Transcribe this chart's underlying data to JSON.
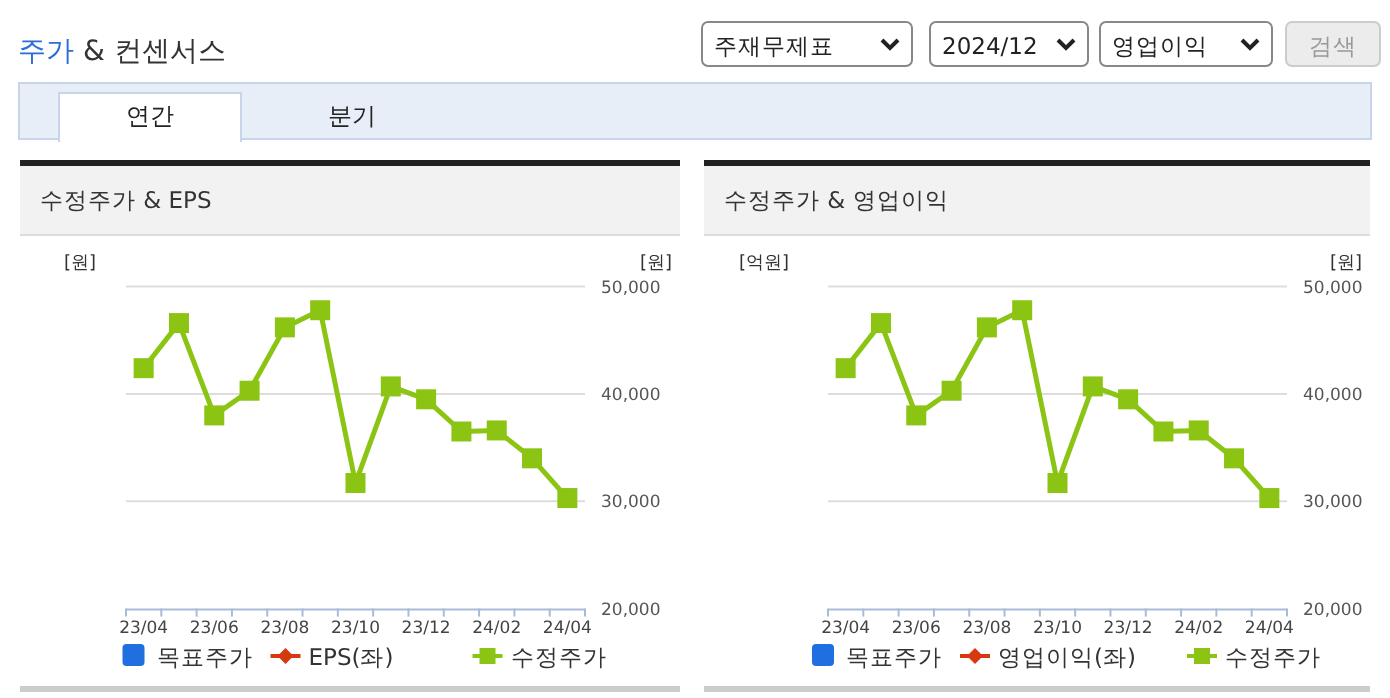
{
  "chart_data": [
    {
      "type": "other",
      "title": "주가 & 컨센서스",
      "annotations": [
        "주재무제표",
        "2024/12",
        "영업이익",
        "검색",
        "연간",
        "분기"
      ]
    },
    {
      "type": "line",
      "title": "수정주가 & EPS",
      "ylabel": "[원]",
      "y2label": "[원]",
      "categories": [
        "23/04",
        null,
        "23/06",
        null,
        "23/08",
        null,
        "23/10",
        null,
        "23/12",
        null,
        "24/02",
        null,
        "24/04"
      ],
      "series": [
        {
          "name": "목표주가",
          "type": "bar",
          "color": "#1f6fe0",
          "values": [
            null,
            null,
            null,
            null,
            null,
            null,
            null,
            null,
            null,
            null,
            null,
            null,
            null
          ]
        },
        {
          "name": "EPS(좌)",
          "color": "#d6380f",
          "marker": "diamond",
          "values": [
            null,
            null,
            null,
            null,
            null,
            null,
            null,
            null,
            null,
            null,
            null,
            null,
            null
          ]
        },
        {
          "name": "수정주가",
          "color": "#8cc414",
          "marker": "square",
          "axis": "y2",
          "values": [
            42400,
            46600,
            38000,
            40300,
            46200,
            47800,
            31700,
            40700,
            39500,
            36500,
            36600,
            34000,
            30300
          ]
        }
      ],
      "y2lim": [
        20000,
        50000
      ],
      "y2ticks": [
        {
          "value": 20000,
          "label": "20,000"
        },
        {
          "value": 30000,
          "label": "30,000"
        },
        {
          "value": 40000,
          "label": "40,000"
        },
        {
          "value": 50000,
          "label": "50,000"
        }
      ],
      "grid": "y",
      "legend": "bottom"
    },
    {
      "type": "line",
      "title": "수정주가 & 영업이익",
      "ylabel": "[억원]",
      "y2label": "[원]",
      "categories": [
        "23/04",
        null,
        "23/06",
        null,
        "23/08",
        null,
        "23/10",
        null,
        "23/12",
        null,
        "24/02",
        null,
        "24/04"
      ],
      "series": [
        {
          "name": "목표주가",
          "type": "bar",
          "color": "#1f6fe0",
          "values": [
            null,
            null,
            null,
            null,
            null,
            null,
            null,
            null,
            null,
            null,
            null,
            null,
            null
          ]
        },
        {
          "name": "영업이익(좌)",
          "color": "#d6380f",
          "marker": "diamond",
          "values": [
            null,
            null,
            null,
            null,
            null,
            null,
            null,
            null,
            null,
            null,
            null,
            null,
            null
          ]
        },
        {
          "name": "수정주가",
          "color": "#8cc414",
          "marker": "square",
          "axis": "y2",
          "values": [
            42400,
            46600,
            38000,
            40300,
            46200,
            47800,
            31700,
            40700,
            39500,
            36500,
            36600,
            34000,
            30300
          ]
        }
      ],
      "y2lim": [
        20000,
        50000
      ],
      "y2ticks": [
        {
          "value": 20000,
          "label": "20,000"
        },
        {
          "value": 30000,
          "label": "30,000"
        },
        {
          "value": 40000,
          "label": "40,000"
        },
        {
          "value": 50000,
          "label": "50,000"
        }
      ],
      "grid": "y",
      "legend": "bottom"
    }
  ]
}
